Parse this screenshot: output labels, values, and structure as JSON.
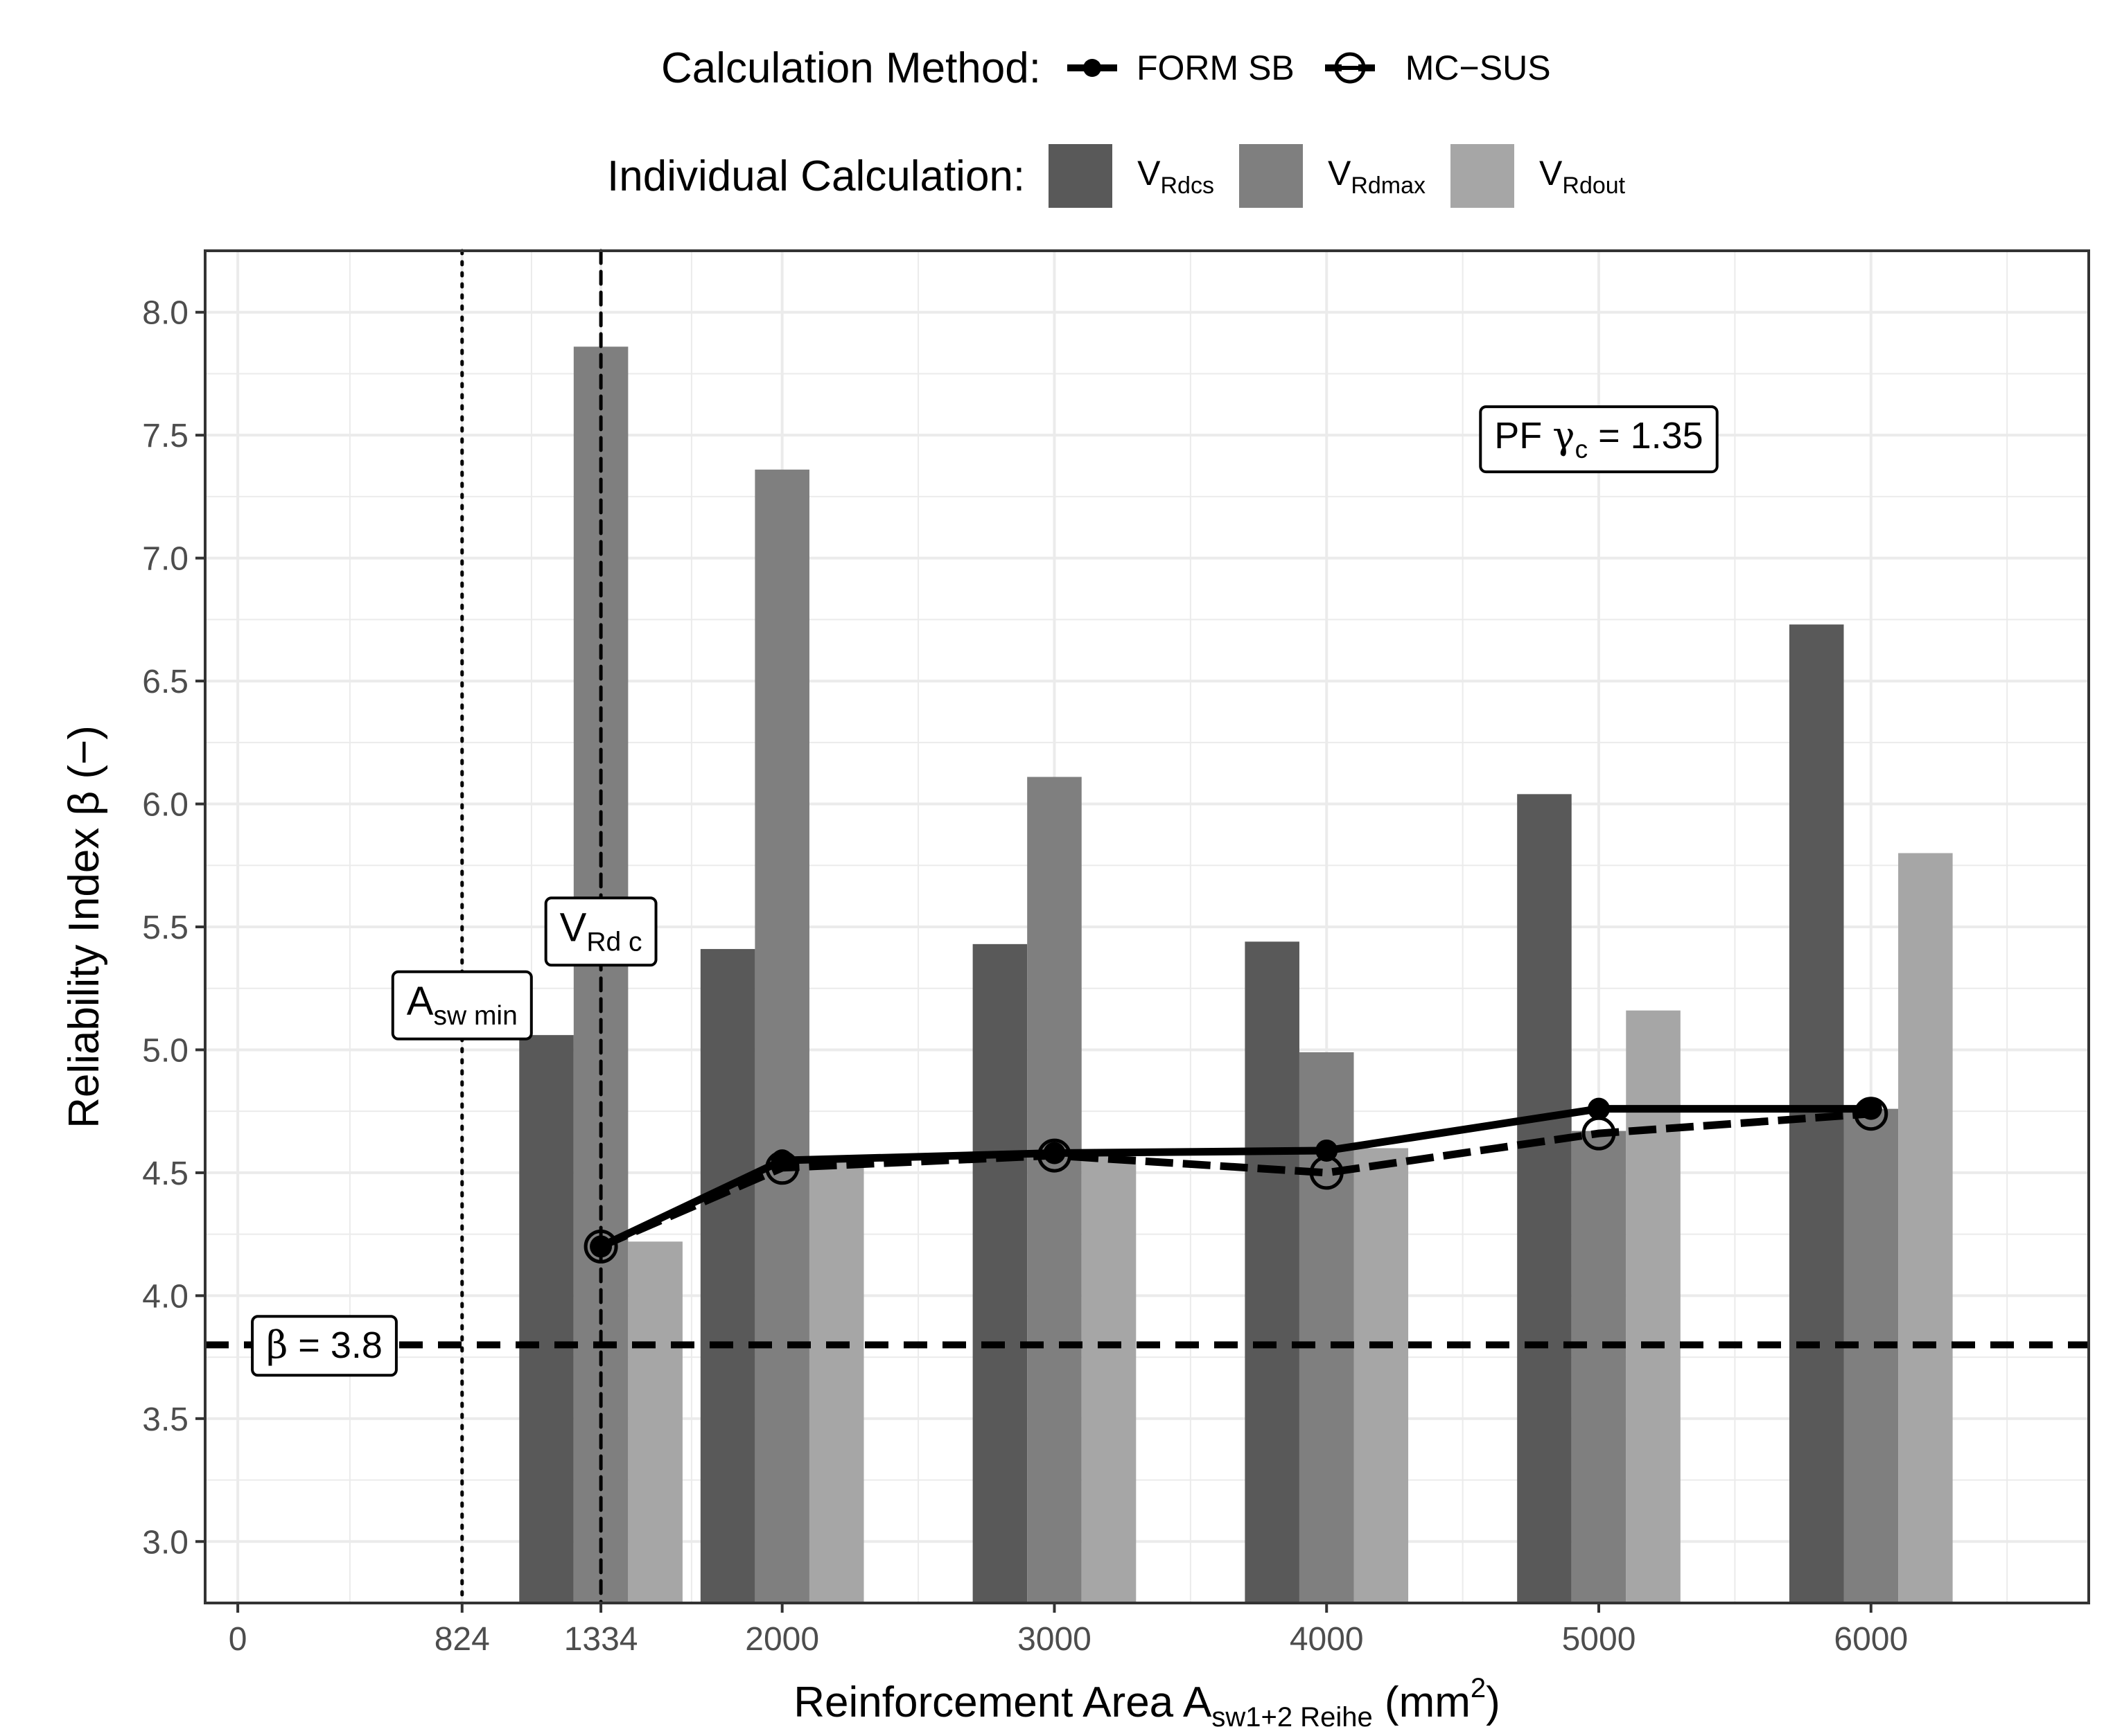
{
  "chart_data": {
    "type": "bar",
    "x_label": {
      "text": "Reinforcement Area A",
      "sub": "sw1+2 Reihe",
      "unit_prefix": " (mm",
      "unit_sup": "2",
      "unit_suffix": ")"
    },
    "y_label": "Reliability Index  β (−)",
    "xlim": [
      -120,
      6800
    ],
    "ylim": [
      2.75,
      8.25
    ],
    "x_ticks": [
      0,
      824,
      1334,
      2000,
      3000,
      4000,
      5000,
      6000
    ],
    "y_ticks": [
      3.0,
      3.5,
      4.0,
      4.5,
      5.0,
      5.5,
      6.0,
      6.5,
      7.0,
      7.5,
      8.0
    ],
    "y_tick_labels": [
      "3.0",
      "3.5",
      "4.0",
      "4.5",
      "5.0",
      "5.5",
      "6.0",
      "6.5",
      "7.0",
      "7.5",
      "8.0"
    ],
    "categories": [
      1334,
      2000,
      3000,
      4000,
      5000,
      6000
    ],
    "bar_group_width": 600,
    "series": [
      {
        "name": "VRdcs",
        "label_main": "V",
        "label_sub": "Rdcs",
        "color": "#595959",
        "values": [
          5.06,
          5.41,
          5.43,
          5.44,
          6.04,
          6.73
        ]
      },
      {
        "name": "VRdmax",
        "label_main": "V",
        "label_sub": "Rdmax",
        "color": "#7f7f7f",
        "values": [
          7.86,
          7.36,
          6.11,
          4.99,
          4.67,
          4.76
        ]
      },
      {
        "name": "VRdout",
        "label_main": "V",
        "label_sub": "Rdout",
        "color": "#a6a6a6",
        "values": [
          4.22,
          4.55,
          4.57,
          4.6,
          5.16,
          5.8
        ]
      }
    ],
    "lines": [
      {
        "name": "FORM SB",
        "marker": "filled",
        "dash": false,
        "x": [
          1334,
          2000,
          3000,
          4000,
          5000,
          6000
        ],
        "y": [
          4.2,
          4.55,
          4.58,
          4.59,
          4.76,
          4.76
        ]
      },
      {
        "name": "MC-SUS",
        "marker": "open",
        "dash": true,
        "x": [
          1334,
          2000,
          3000,
          4000,
          5000,
          6000
        ],
        "y": [
          4.2,
          4.52,
          4.57,
          4.5,
          4.66,
          4.74
        ]
      }
    ],
    "reference_lines": [
      {
        "name": "beta-target",
        "axis": "y",
        "value": 3.8,
        "style": "dashed"
      },
      {
        "name": "asw-min",
        "axis": "x",
        "value": 824,
        "style": "dotted"
      },
      {
        "name": "vrdc",
        "axis": "x",
        "value": 1334,
        "style": "dashed"
      }
    ],
    "annotations": [
      {
        "name": "pf-annotation",
        "parts": [
          {
            "t": "PF "
          },
          {
            "t": "γ",
            "greek": true
          },
          {
            "t": "c",
            "sub": true
          },
          {
            "t": " = 1.35"
          }
        ],
        "x": 5000,
        "y": 7.5
      },
      {
        "name": "vrdc-annotation",
        "parts": [
          {
            "t": "V"
          },
          {
            "t": "Rd c",
            "sub": true
          }
        ],
        "x": 1334,
        "y": 5.5
      },
      {
        "name": "asw-min-annotation",
        "parts": [
          {
            "t": "A"
          },
          {
            "t": "sw min",
            "sub": true
          }
        ],
        "x": 824,
        "y": 5.2
      },
      {
        "name": "beta-annotation",
        "parts": [
          {
            "t": "β",
            "greek": true
          },
          {
            "t": " = 3.8"
          }
        ],
        "x": 380,
        "y": 3.8
      }
    ]
  },
  "legend": {
    "method": {
      "title": "Calculation Method:",
      "entries": [
        "FORM SB",
        "MC−SUS"
      ]
    },
    "individual": {
      "title": "Individual Calculation:",
      "entries": [
        {
          "main": "V",
          "sub": "Rdcs",
          "color": "#595959"
        },
        {
          "main": "V",
          "sub": "Rdmax",
          "color": "#7f7f7f"
        },
        {
          "main": "V",
          "sub": "Rdout",
          "color": "#a6a6a6"
        }
      ]
    }
  }
}
